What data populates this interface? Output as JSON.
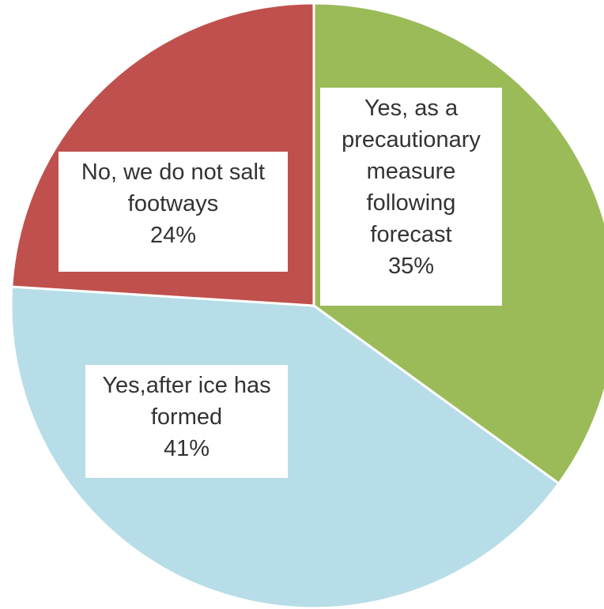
{
  "chart_data": {
    "type": "pie",
    "slices": [
      {
        "label_lines": [
          "Yes, as a",
          "precautionary",
          "measure",
          "following",
          "forecast"
        ],
        "value": 35,
        "value_label": "35%",
        "color": "#9bbb59"
      },
      {
        "label_lines": [
          "Yes,after ice has",
          "formed"
        ],
        "value": 41,
        "value_label": "41%",
        "color": "#b7dde8"
      },
      {
        "label_lines": [
          "No, we do not salt",
          "footways"
        ],
        "value": 24,
        "value_label": "24%",
        "color": "#c0504d"
      }
    ],
    "start_angle_deg": 0,
    "direction": "clockwise",
    "legend": "none"
  }
}
